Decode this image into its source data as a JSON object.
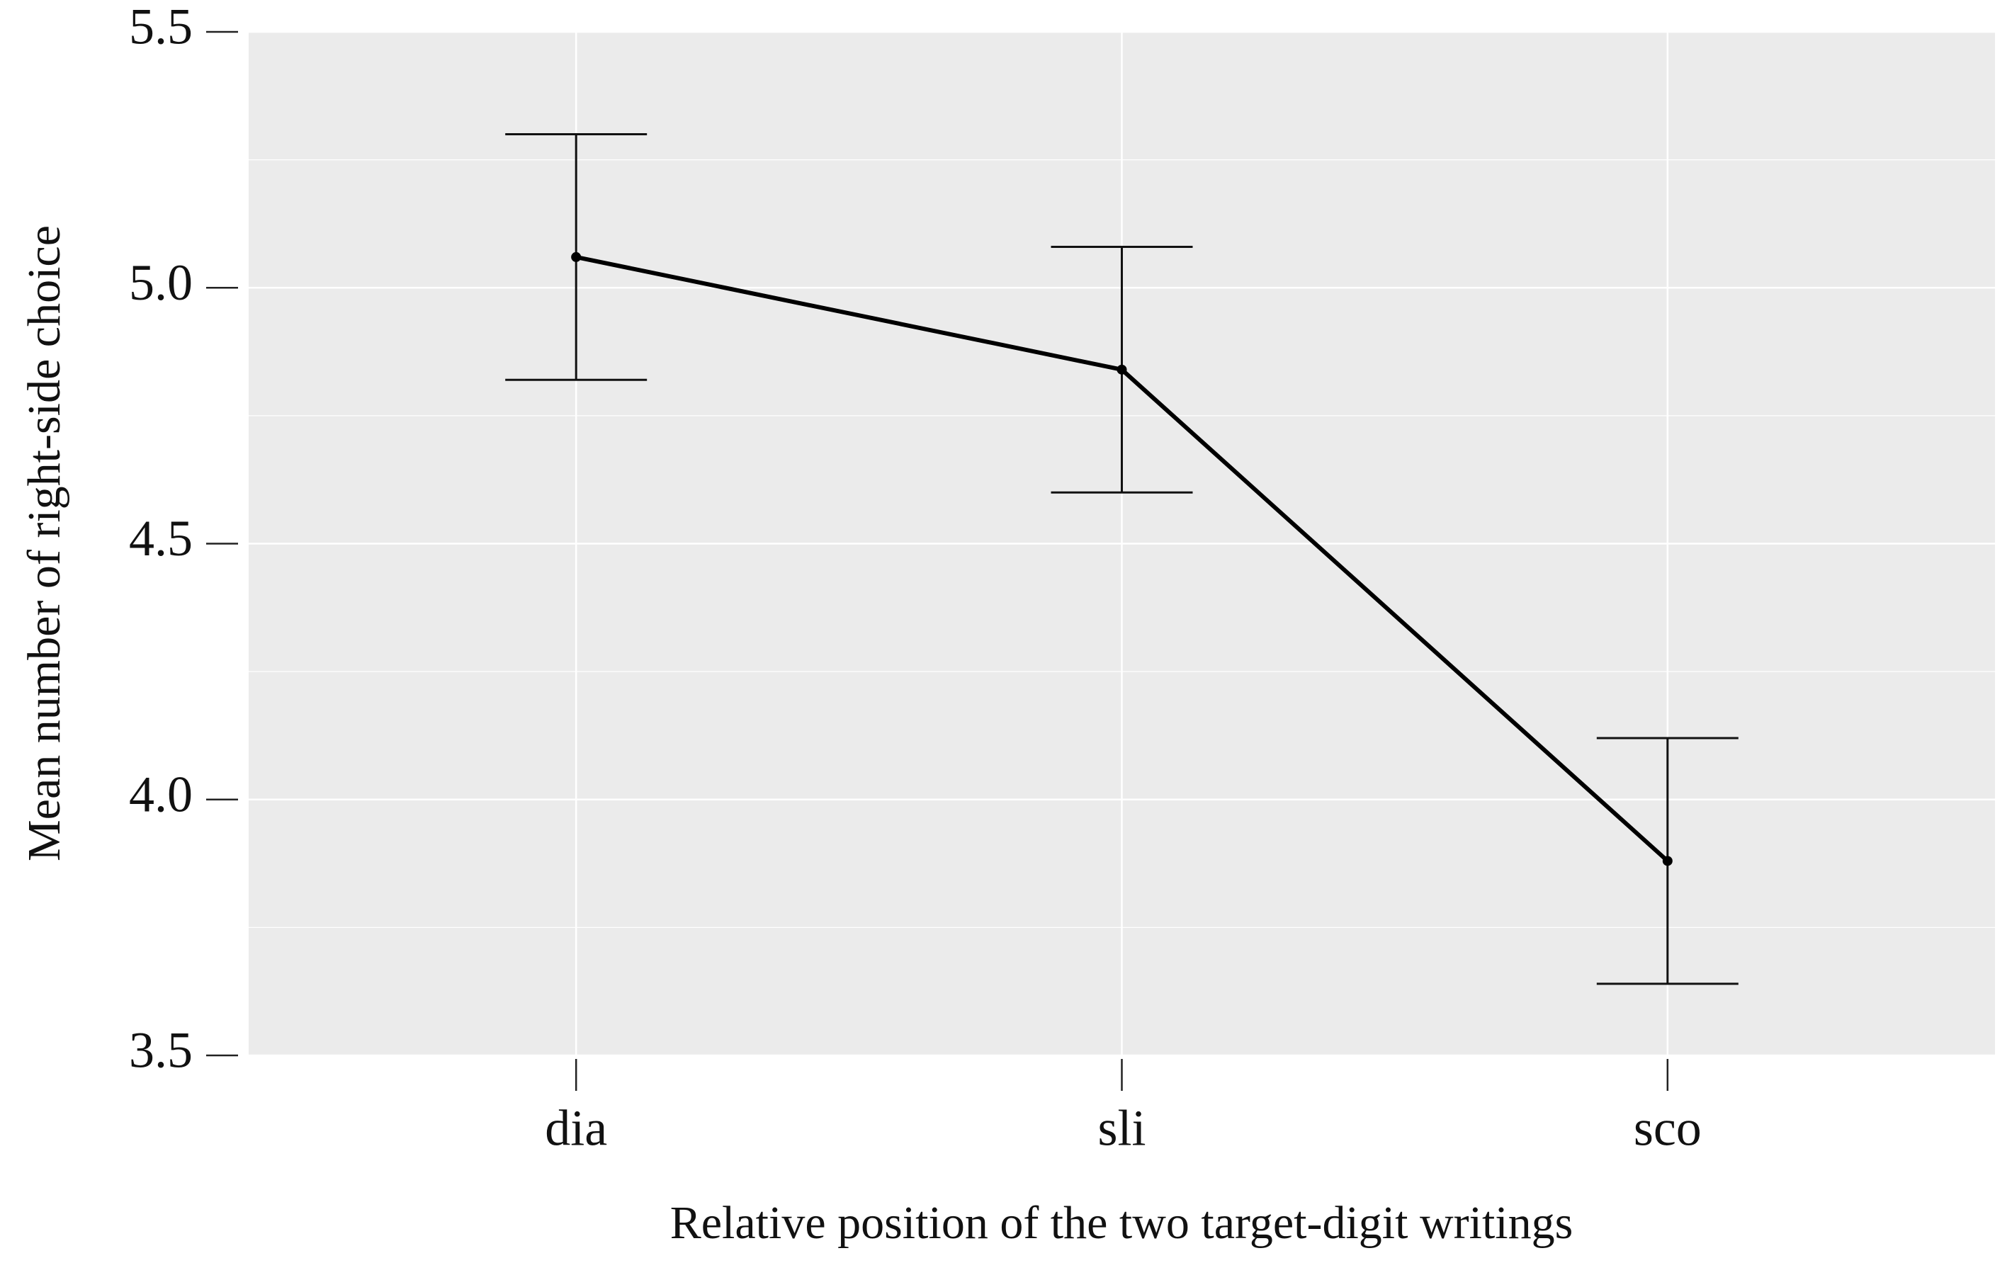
{
  "chart_data": {
    "type": "line",
    "x_label": "Relative position of the two target-digit writings",
    "y_label": "Mean number of right-side choice",
    "categories": [
      "dia",
      "sli",
      "sco"
    ],
    "values": [
      5.06,
      4.84,
      3.88
    ],
    "errors": [
      0.24,
      0.24,
      0.24
    ],
    "color": "#000000",
    "ylim": [
      3.5,
      5.5
    ],
    "yticks": [
      3.5,
      {
        "value": 4.0,
        "label": "4.0"
      },
      4.5,
      {
        "value": 5.0,
        "label": "5.0"
      },
      5.5
    ],
    "grid": true
  }
}
